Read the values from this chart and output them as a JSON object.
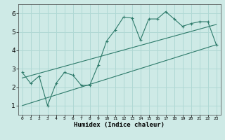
{
  "title": "",
  "xlabel": "Humidex (Indice chaleur)",
  "ylabel": "",
  "xlim": [
    -0.5,
    23.5
  ],
  "ylim": [
    0.5,
    6.5
  ],
  "xticks": [
    0,
    1,
    2,
    3,
    4,
    5,
    6,
    7,
    8,
    9,
    10,
    11,
    12,
    13,
    14,
    15,
    16,
    17,
    18,
    19,
    20,
    21,
    22,
    23
  ],
  "yticks": [
    1,
    2,
    3,
    4,
    5,
    6
  ],
  "line_color": "#2d7a6a",
  "bg_color": "#ceeae6",
  "grid_color": "#b0d8d4",
  "curve1_x": [
    0,
    1,
    2,
    3,
    4,
    5,
    6,
    7,
    8,
    9,
    10,
    11,
    12,
    13,
    14,
    15,
    16,
    17,
    18,
    19,
    20,
    21,
    22,
    23
  ],
  "curve1_y": [
    2.8,
    2.2,
    2.6,
    1.0,
    2.2,
    2.8,
    2.65,
    2.1,
    2.1,
    3.2,
    4.5,
    5.1,
    5.8,
    5.75,
    4.55,
    5.7,
    5.7,
    6.1,
    5.7,
    5.3,
    5.45,
    5.55,
    5.55,
    4.3
  ],
  "curve2_x": [
    0,
    23
  ],
  "curve2_y": [
    1.0,
    4.3
  ],
  "curve3_x": [
    0,
    23
  ],
  "curve3_y": [
    2.5,
    5.4
  ]
}
